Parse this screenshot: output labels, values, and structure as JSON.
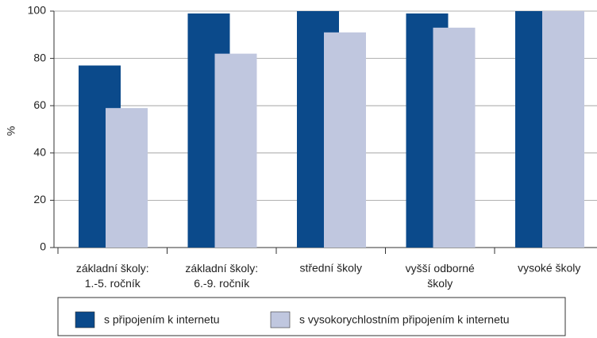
{
  "chart_data": {
    "type": "bar",
    "y_label": "%",
    "categories": [
      "základní školy:\n1.-5. ročník",
      "základní školy:\n6.-9. ročník",
      "střední školy",
      "vyšší odborné\nškoly",
      "vysoké školy"
    ],
    "series": [
      {
        "name": "s připojením k internetu",
        "color": "#0b4a8b",
        "values": [
          77,
          99,
          100,
          99,
          100
        ]
      },
      {
        "name": "s vysokorychlostním připojením k internetu",
        "color": "#c0c7df",
        "values": [
          59,
          82,
          91,
          93,
          100
        ]
      }
    ],
    "ylim": [
      0,
      100
    ],
    "yticks": [
      0,
      20,
      40,
      60,
      80,
      100
    ],
    "grid": true
  }
}
